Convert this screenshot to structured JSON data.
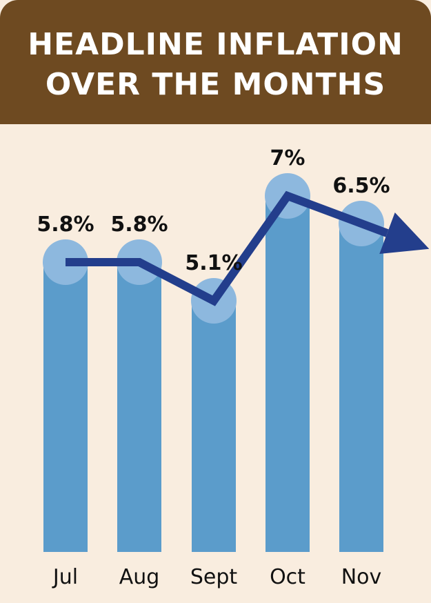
{
  "header": {
    "title_line1": "HEADLINE INFLATION",
    "title_line2": "OVER THE MONTHS"
  },
  "colors": {
    "header_bg": "#6e4a21",
    "background": "#f9eddf",
    "bar": "#5b9ccb",
    "bar_cap": "#8db8de",
    "trend_line": "#233e8c"
  },
  "chart_data": {
    "type": "bar",
    "title": "HEADLINE INFLATION OVER THE MONTHS",
    "categories": [
      "Jul",
      "Aug",
      "Sept",
      "Oct",
      "Nov"
    ],
    "values": [
      5.8,
      5.8,
      5.1,
      7,
      6.5
    ],
    "value_labels": [
      "5.8%",
      "5.8%",
      "5.1%",
      "7%",
      "6.5%"
    ],
    "overlay": "trend line with arrow",
    "grid": false,
    "legend": "none"
  }
}
